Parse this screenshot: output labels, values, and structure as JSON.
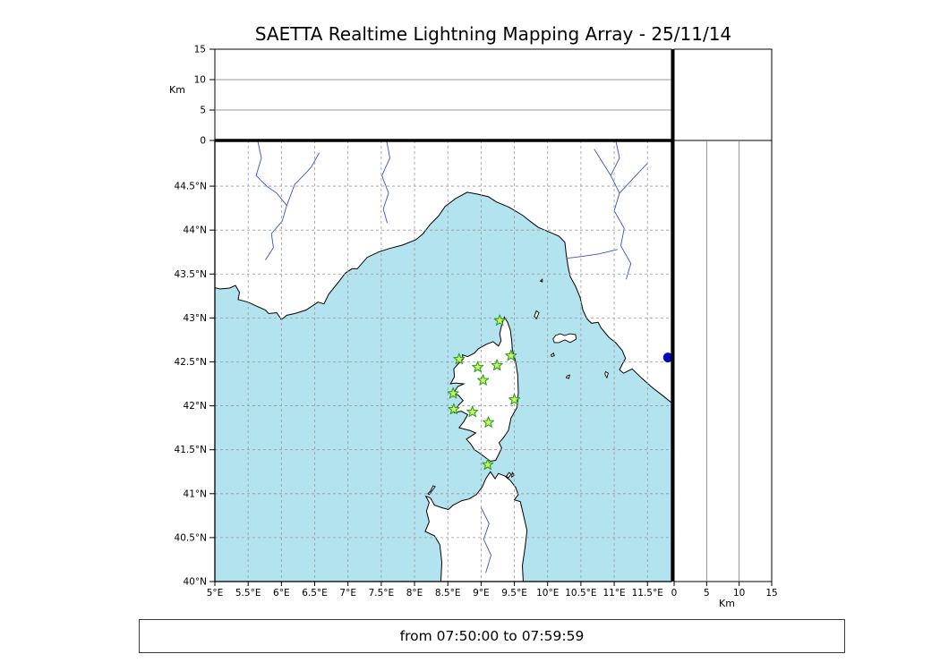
{
  "title": "SAETTA Realtime Lightning Mapping Array - 25/11/14",
  "status_bar": {
    "text": "from 07:50:00 to 07:59:59"
  },
  "chart_data": {
    "type": "map",
    "title": "SAETTA Realtime Lightning Mapping Array - 25/11/14",
    "time_window": {
      "from": "07:50:00",
      "to": "07:59:59"
    },
    "layout": "LMA composite: altitude-vs-longitude top panel, lon/lat geographic map main panel, altitude-vs-latitude right panel, empty corner box top-right",
    "panels": {
      "top": {
        "axis": "altitude vs longitude",
        "y_label": "Km",
        "y_ticks": [
          "0",
          "5",
          "10",
          "15"
        ],
        "y_range_km": [
          0,
          15
        ],
        "inner_gridlines_km": [
          5,
          10
        ],
        "points": []
      },
      "map": {
        "lon_tick_labels": [
          "5°E",
          "5.5°E",
          "6°E",
          "6.5°E",
          "7°E",
          "7.5°E",
          "8°E",
          "8.5°E",
          "9°E",
          "9.5°E",
          "10°E",
          "10.5°E",
          "11°E",
          "11.5°E"
        ],
        "lat_tick_labels": [
          "40°N",
          "40.5°N",
          "41°N",
          "41.5°N",
          "42°N",
          "42.5°N",
          "43°N",
          "43.5°N",
          "44°N",
          "44.5°N"
        ],
        "lon_range": [
          5.0,
          11.86
        ],
        "lat_range": [
          40.0,
          45.02
        ],
        "grid_step_deg": 0.5,
        "grid_style": "dashed",
        "region": "Corsica, Sardinia (north), French Riviera, Ligurian and Tuscan coasts of Italy",
        "lightning_points": []
      },
      "right": {
        "axis": "altitude vs latitude",
        "x_label": "Km",
        "x_ticks": [
          "0",
          "5",
          "10",
          "15"
        ],
        "x_range_km": [
          0,
          15
        ],
        "inner_gridlines_km": [
          5,
          10
        ],
        "points": []
      }
    },
    "stations": [
      {
        "lon": 9.28,
        "lat": 42.97
      },
      {
        "lon": 8.67,
        "lat": 42.53
      },
      {
        "lon": 8.95,
        "lat": 42.44
      },
      {
        "lon": 9.24,
        "lat": 42.46
      },
      {
        "lon": 9.45,
        "lat": 42.57
      },
      {
        "lon": 9.03,
        "lat": 42.29
      },
      {
        "lon": 8.58,
        "lat": 42.14
      },
      {
        "lon": 9.5,
        "lat": 42.07
      },
      {
        "lon": 8.59,
        "lat": 41.96
      },
      {
        "lon": 8.87,
        "lat": 41.93
      },
      {
        "lon": 9.11,
        "lat": 41.81
      },
      {
        "lon": 9.1,
        "lat": 41.33
      }
    ],
    "edge_point": {
      "lon": 11.81,
      "lat": 42.55
    }
  },
  "colors": {
    "sea": "#b3e3ef",
    "land": "#ffffff",
    "coast": "#000000",
    "river": "#3d4fc4",
    "grid": "#999999",
    "panel_line": "#777777",
    "station_fill": "#ccf65e",
    "station_stroke": "#2e9e26",
    "edge_point": "#0008cc",
    "border": "#000000"
  }
}
